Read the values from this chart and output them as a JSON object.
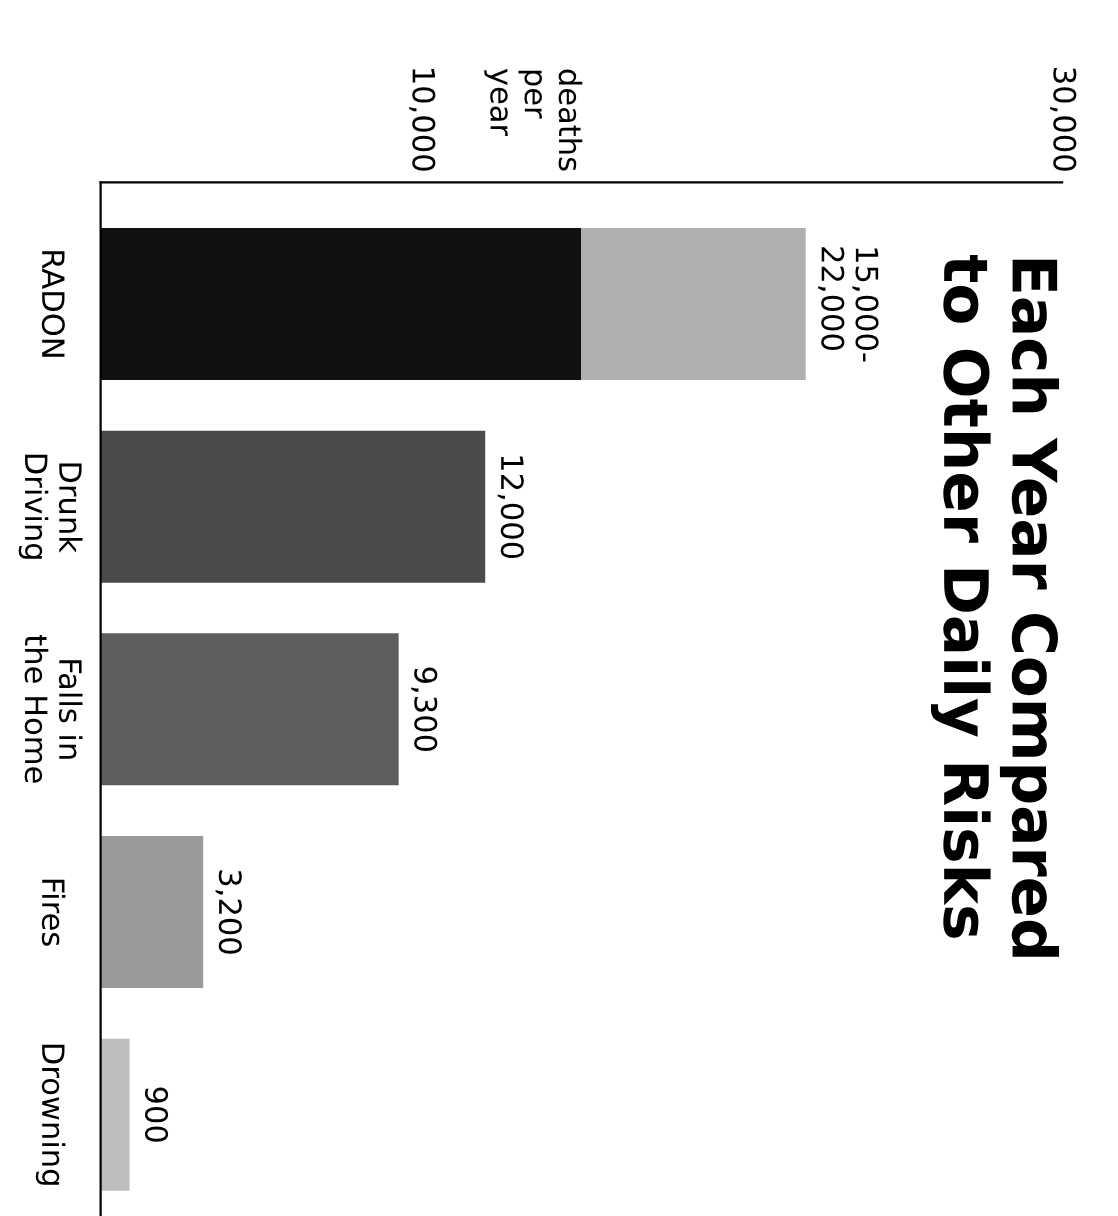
{
  "chart_data": {
    "type": "bar",
    "orientation": "horizontal",
    "stacked": true,
    "title": "Each Year Compared\nto Other Daily Risks",
    "annotations": [
      "deaths\nper\nyear"
    ],
    "categories": [
      "RADON",
      "Drunk\nDriving",
      "Falls in\nthe Home",
      "Fires",
      "Drowning"
    ],
    "series": [
      {
        "colors": [
          "#111111",
          "#4a4a4a",
          "#5e5e5e",
          "#9a9a9a",
          "#bdbdbd"
        ],
        "values": [
          15000,
          12000,
          9300,
          3200,
          900
        ],
        "value_labels": [
          null,
          "12,000",
          "9,300",
          "3,200",
          "900"
        ]
      },
      {
        "colors": [
          "#b0b0b0",
          "#b0b0b0",
          "#b0b0b0",
          "#b0b0b0",
          "#b0b0b0"
        ],
        "values": [
          7000,
          null,
          null,
          null,
          null
        ],
        "value_labels": [
          "15,000-\n22,000",
          null,
          null,
          null,
          null
        ]
      }
    ],
    "xlim": [
      0,
      30000
    ],
    "xticks": [
      {
        "value": 10000,
        "label": "10,000"
      },
      {
        "value": 30000,
        "label": "30,000"
      }
    ],
    "grid": false,
    "legend": false
  }
}
